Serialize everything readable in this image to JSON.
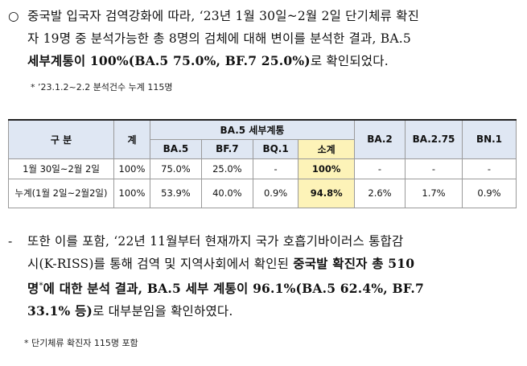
{
  "para1": {
    "bullet": "○",
    "line1": "중국발 입국자 검역강화에 따라, ‘23년 1월 30일~2월 2일 단기체류 확진",
    "line2": "자 19명 중 분석가능한 총 8명의 검체에 대해 변이를 분석한 결과, BA.5",
    "line3_bold": "세부계통이 100%(BA.5 75.0%, BF.7 25.0%)",
    "line3_rest": "로 확인되었다."
  },
  "note1": "* ’23.1.2~2.2 분석건수 누계 115명",
  "table": {
    "header": {
      "division": "구 분",
      "total": "계",
      "group": "BA.5 세부계통",
      "sub": [
        "BA.5",
        "BF.7",
        "BQ.1",
        "소계"
      ],
      "others": [
        "BA.2",
        "BA.2.75",
        "BN.1"
      ]
    },
    "rows": [
      {
        "label": "1월 30일~2월 2일",
        "cells": [
          "100%",
          "75.0%",
          "25.0%",
          "-",
          "100%",
          "-",
          "-",
          "-"
        ]
      },
      {
        "label": "누계(1월 2일~2월2일)",
        "cells": [
          "100%",
          "53.9%",
          "40.0%",
          "0.9%",
          "94.8%",
          "2.6%",
          "1.7%",
          "0.9%"
        ]
      }
    ]
  },
  "para2": {
    "dash": "-",
    "line1": "또한 이를 포함, ‘22년 11월부터 현재까지 국가 호흡기바이러스 통합감",
    "line2_plain": "시(K-RISS)를 통해 검역 및 지역사회에서 확인된 ",
    "line2_bold": "중국발 확진자 총 510",
    "line3_bold": "명",
    "line3_sup": "*",
    "line3_bold2": "에 대한 분석 결과, BA.5 세부 계통이 96.1%(BA.5 62.4%, BF.7",
    "line4_bold": "33.1% 등)",
    "line4_rest": "로 대부분임을 확인하였다."
  },
  "note2": "* 단기체류 확진자 115명 포함"
}
